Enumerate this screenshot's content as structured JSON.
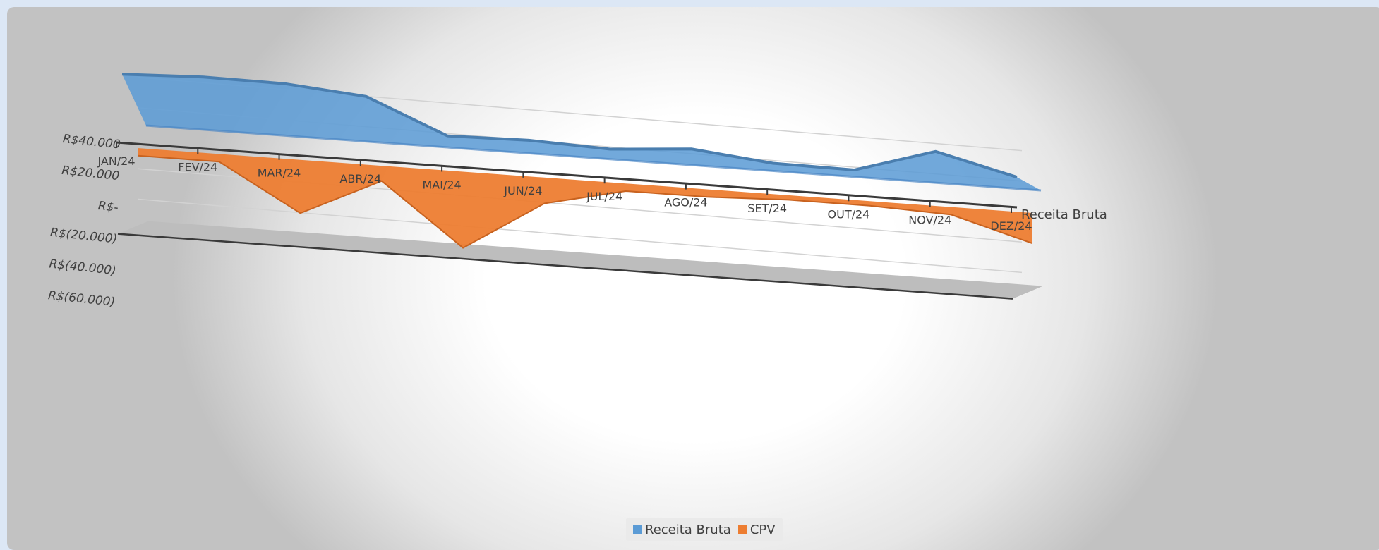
{
  "chart_data": {
    "type": "area",
    "style": "3d-area",
    "categories": [
      "JAN/24",
      "FEV/24",
      "MAR/24",
      "ABR/24",
      "MAI/24",
      "JUN/24",
      "JUL/24",
      "AGO/24",
      "SET/24",
      "OUT/24",
      "NOV/24",
      "DEZ/24"
    ],
    "series": [
      {
        "name": "Receita Bruta",
        "color": "#5b9bd5",
        "values": [
          30000,
          32000,
          31500,
          27000,
          5000,
          6000,
          4000,
          8000,
          2500,
          2000,
          18000,
          5000
        ]
      },
      {
        "name": "CPV",
        "color": "#ed7d31",
        "values": [
          -5000,
          -5000,
          -35000,
          -10000,
          -50000,
          -17000,
          -5000,
          -5000,
          -3000,
          -3000,
          -5000,
          -20000
        ]
      }
    ],
    "y_ticks": [
      "R$40.000",
      "R$20.000",
      "R$-",
      "R$(20.000)",
      "R$(40.000)",
      "R$(60.000)"
    ],
    "ylim": [
      -60000,
      40000
    ],
    "depth_axis_label": "Receita Bruta",
    "legend_position": "bottom",
    "grid": true
  },
  "legend": [
    {
      "label": "Receita Bruta",
      "color": "#5b9bd5"
    },
    {
      "label": "CPV",
      "color": "#ed7d31"
    }
  ]
}
